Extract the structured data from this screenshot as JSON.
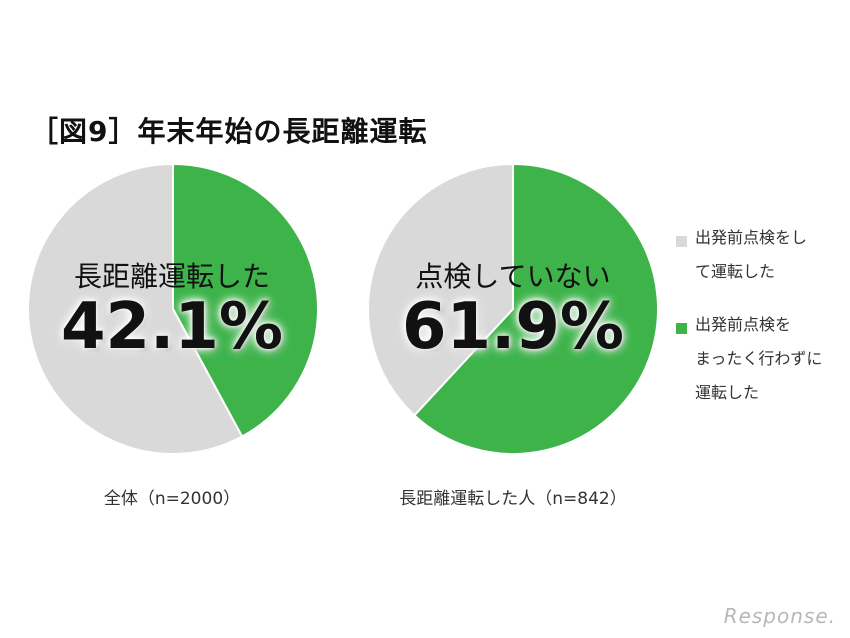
{
  "title": "［図9］年末年始の長距離運転",
  "colors": {
    "green": "#3db34a",
    "gray": "#d9d9d9"
  },
  "chart_data": [
    {
      "type": "pie",
      "center_label": "長距離運転した",
      "big_label": "42.1%",
      "caption": "全体（n=2000）",
      "slices": [
        {
          "label": "長距離運転した",
          "value": 42.1,
          "color": "#3db34a"
        },
        {
          "label": "",
          "value": 57.9,
          "color": "#d9d9d9"
        }
      ]
    },
    {
      "type": "pie",
      "center_label": "点検していない",
      "big_label": "61.9%",
      "caption": "長距離運転した人（n=842）",
      "slices": [
        {
          "label": "出発前点検をまったく行わずに運転した",
          "value": 61.9,
          "color": "#3db34a"
        },
        {
          "label": "出発前点検をして運転した",
          "value": 38.1,
          "color": "#d9d9d9"
        }
      ]
    }
  ],
  "legend": [
    {
      "line1": "出発前点検をし",
      "line2": "て運転した",
      "line3": "",
      "color": "#d9d9d9"
    },
    {
      "line1": "出発前点検を",
      "line2": "まったく行わずに",
      "line3": "運転した",
      "color": "#3db34a"
    }
  ],
  "watermark": "Response."
}
